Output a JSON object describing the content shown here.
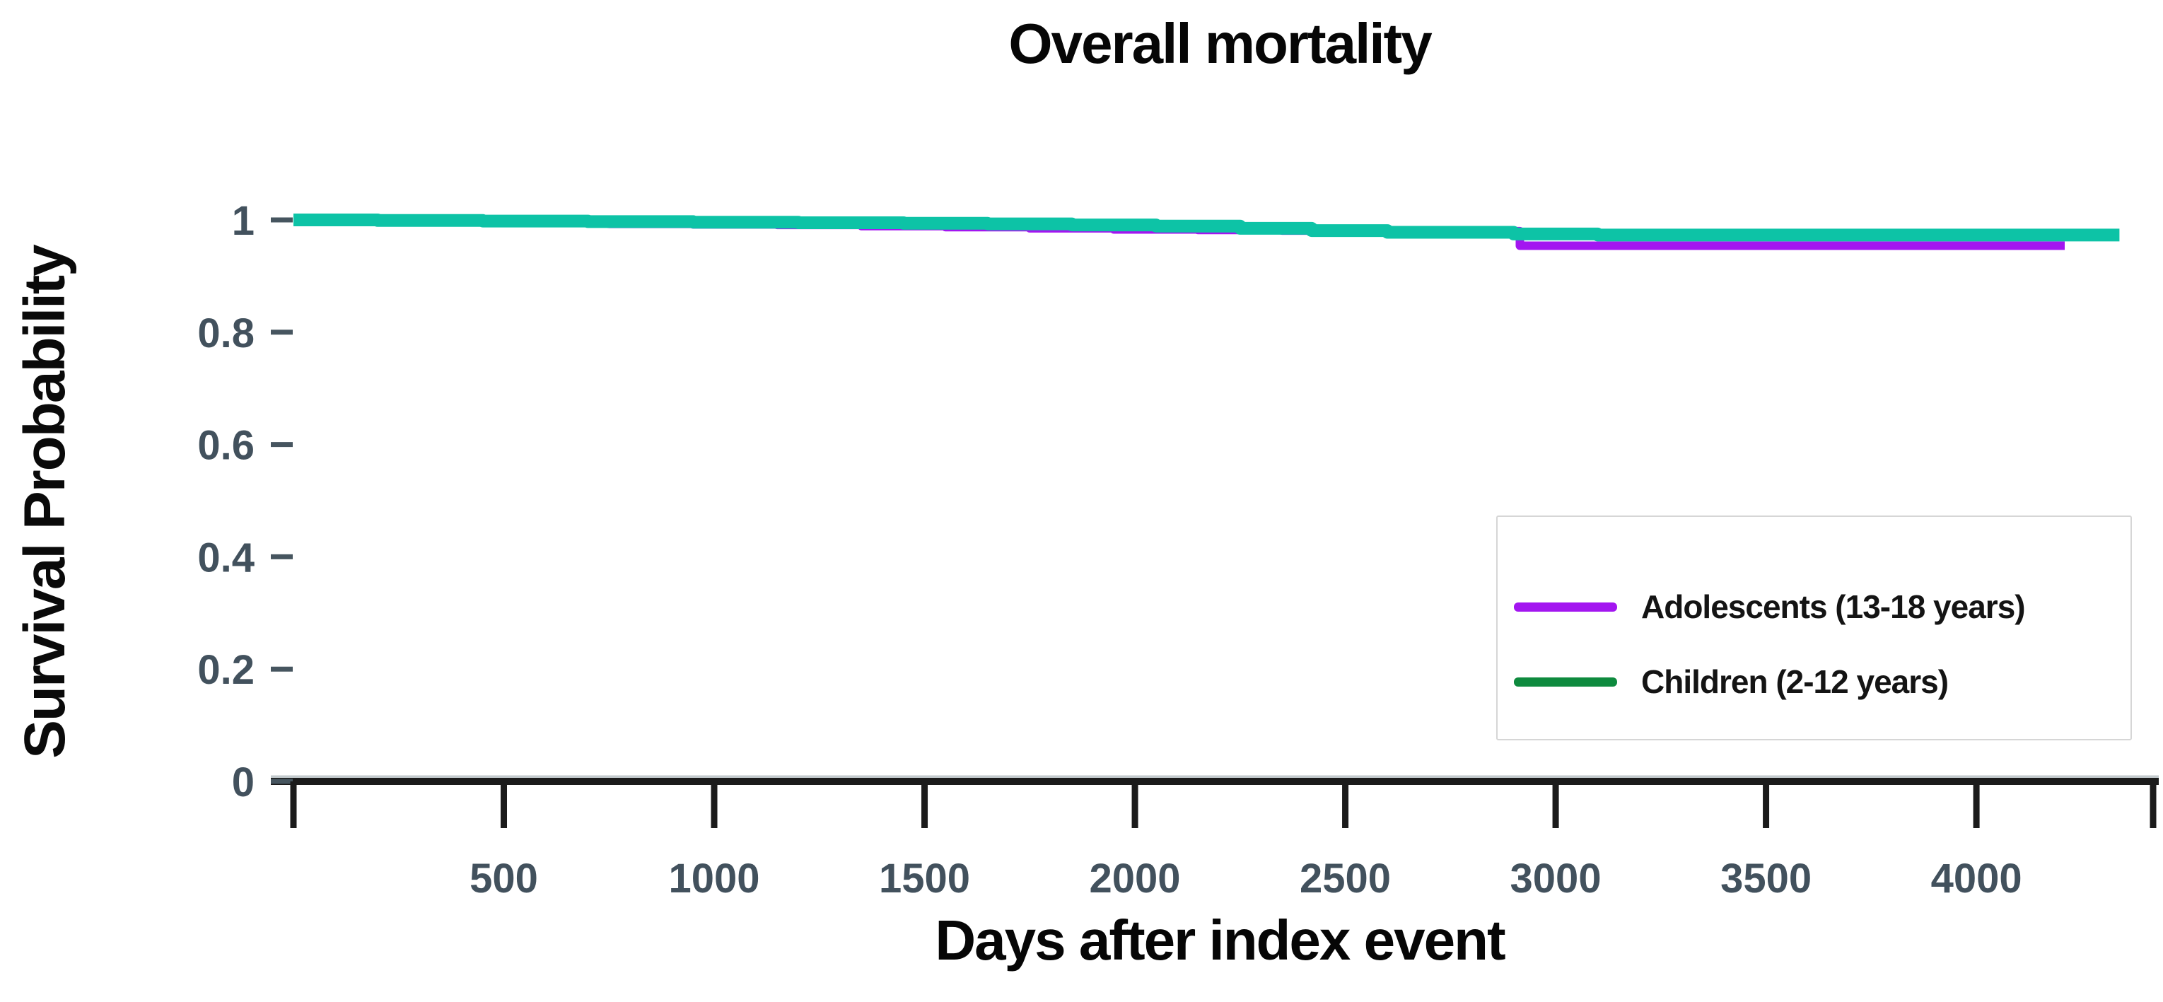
{
  "chart_data": {
    "type": "line",
    "subtype": "kaplan-meier-step",
    "title": "Overall mortality",
    "xlabel": "Days after index event",
    "ylabel": "Survival Probability",
    "xlim": [
      0,
      4420
    ],
    "ylim": [
      0,
      1
    ],
    "grid": "off",
    "legend_position": "right-center",
    "x_ticks": [
      {
        "label": "500",
        "value": 500
      },
      {
        "label": "1000",
        "value": 1000
      },
      {
        "label": "1500",
        "value": 1500
      },
      {
        "label": "2000",
        "value": 2000
      },
      {
        "label": "2500",
        "value": 2500
      },
      {
        "label": "3000",
        "value": 3000
      },
      {
        "label": "3500",
        "value": 3500
      },
      {
        "label": "4000",
        "value": 4000
      }
    ],
    "x_edge_ticks": [
      0,
      4420
    ],
    "y_ticks": [
      {
        "label": "1",
        "value": 1
      },
      {
        "label": "0.8",
        "value": 0.8
      },
      {
        "label": "0.6",
        "value": 0.6
      },
      {
        "label": "0.4",
        "value": 0.4
      },
      {
        "label": "0.2",
        "value": 0.2
      },
      {
        "label": "0",
        "value": 0
      }
    ],
    "series": [
      {
        "name": "Adolescents (13-18 years)",
        "color": "#a316f0",
        "legend_swatch_color": "#a316f0",
        "stroke_width": 12,
        "end_day": 4210,
        "points": [
          [
            0,
            1.0
          ],
          [
            150,
            0.998
          ],
          [
            350,
            0.996
          ],
          [
            550,
            0.995
          ],
          [
            750,
            0.993
          ],
          [
            950,
            0.992
          ],
          [
            1150,
            0.991
          ],
          [
            1350,
            0.989
          ],
          [
            1550,
            0.987
          ],
          [
            1750,
            0.985
          ],
          [
            1950,
            0.983
          ],
          [
            2150,
            0.982
          ],
          [
            2350,
            0.981
          ],
          [
            2550,
            0.98
          ],
          [
            2915,
            0.954
          ]
        ]
      },
      {
        "name": "Children (2-12 years)",
        "color": "#0dc3a6",
        "legend_swatch_color": "#0e8a3e",
        "stroke_width": 18,
        "end_day": 4340,
        "points": [
          [
            0,
            1.0
          ],
          [
            200,
            0.999
          ],
          [
            450,
            0.998
          ],
          [
            700,
            0.997
          ],
          [
            950,
            0.996
          ],
          [
            1200,
            0.995
          ],
          [
            1450,
            0.994
          ],
          [
            1650,
            0.993
          ],
          [
            1850,
            0.991
          ],
          [
            2050,
            0.989
          ],
          [
            2250,
            0.985
          ],
          [
            2420,
            0.981
          ],
          [
            2600,
            0.978
          ],
          [
            2900,
            0.975
          ],
          [
            3100,
            0.973
          ]
        ]
      }
    ],
    "axis_style": {
      "axis_line_color": "#1b1b1b",
      "tick_label_color": "#42515d",
      "y_dash_color": "#46555f"
    }
  }
}
